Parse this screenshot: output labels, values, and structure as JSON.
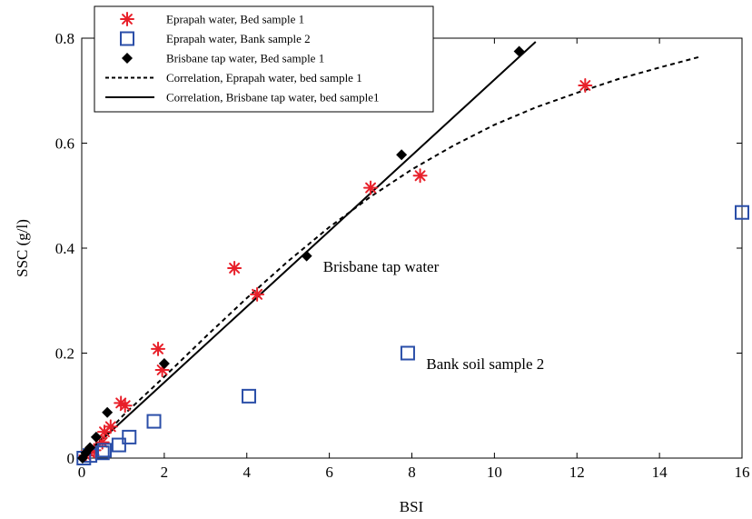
{
  "chart_data": {
    "type": "scatter",
    "xlabel": "BSI",
    "ylabel": "SSC (g/l)",
    "xlim": [
      0,
      16
    ],
    "ylim": [
      0,
      0.8
    ],
    "xticks": [
      "0",
      "2",
      "4",
      "6",
      "8",
      "10",
      "12",
      "14",
      "16"
    ],
    "yticks": [
      "0",
      "0.2",
      "0.4",
      "0.6",
      "0.8"
    ],
    "legend_position": "top-left",
    "series": [
      {
        "name": "Eprapah water, Bed sample 1",
        "marker": "asterisk",
        "color": "#e8202a",
        "points": [
          [
            0.1,
            0.005
          ],
          [
            0.2,
            0.01
          ],
          [
            0.3,
            0.015
          ],
          [
            0.5,
            0.03
          ],
          [
            0.55,
            0.05
          ],
          [
            0.7,
            0.06
          ],
          [
            0.95,
            0.105
          ],
          [
            1.05,
            0.1
          ],
          [
            1.85,
            0.208
          ],
          [
            1.95,
            0.168
          ],
          [
            3.7,
            0.362
          ],
          [
            4.25,
            0.312
          ],
          [
            7.0,
            0.515
          ],
          [
            8.2,
            0.538
          ],
          [
            12.2,
            0.71
          ]
        ]
      },
      {
        "name": "Eprapah water, Bank sample 2",
        "marker": "square",
        "color": "#2a4ea8",
        "points": [
          [
            0.05,
            0.0
          ],
          [
            0.2,
            0.005
          ],
          [
            0.5,
            0.01
          ],
          [
            0.55,
            0.015
          ],
          [
            0.9,
            0.025
          ],
          [
            1.15,
            0.04
          ],
          [
            1.75,
            0.07
          ],
          [
            4.05,
            0.118
          ],
          [
            7.9,
            0.2
          ],
          [
            16.0,
            0.468
          ]
        ]
      },
      {
        "name": "Brisbane tap water, Bed sample 1",
        "marker": "diamond",
        "color": "#000000",
        "points": [
          [
            0.02,
            0.0
          ],
          [
            0.1,
            0.01
          ],
          [
            0.2,
            0.02
          ],
          [
            0.35,
            0.04
          ],
          [
            0.62,
            0.087
          ],
          [
            2.0,
            0.18
          ],
          [
            5.45,
            0.385
          ],
          [
            7.75,
            0.578
          ],
          [
            10.6,
            0.775
          ]
        ]
      },
      {
        "name": "Correlation, Eprapah water, bed sample 1",
        "line": "dashed",
        "color": "#000000",
        "points": [
          [
            0,
            0
          ],
          [
            0.5,
            0.038
          ],
          [
            1,
            0.081
          ],
          [
            2,
            0.155
          ],
          [
            3,
            0.231
          ],
          [
            4,
            0.305
          ],
          [
            5,
            0.375
          ],
          [
            6,
            0.44
          ],
          [
            7,
            0.498
          ],
          [
            8,
            0.55
          ],
          [
            9,
            0.595
          ],
          [
            10,
            0.635
          ],
          [
            11,
            0.668
          ],
          [
            12,
            0.696
          ],
          [
            13,
            0.722
          ],
          [
            14,
            0.744
          ],
          [
            15,
            0.765
          ]
        ]
      },
      {
        "name": "Correlation, Brisbane tap water, bed sample1",
        "line": "solid",
        "color": "#000000",
        "points": [
          [
            0,
            0
          ],
          [
            11,
            0.793
          ]
        ]
      }
    ],
    "annotations": [
      {
        "text": "Brisbane tap water",
        "x": 5.85,
        "y": 0.355
      },
      {
        "text": "Bank soil sample 2",
        "x": 8.35,
        "y": 0.17
      }
    ]
  }
}
